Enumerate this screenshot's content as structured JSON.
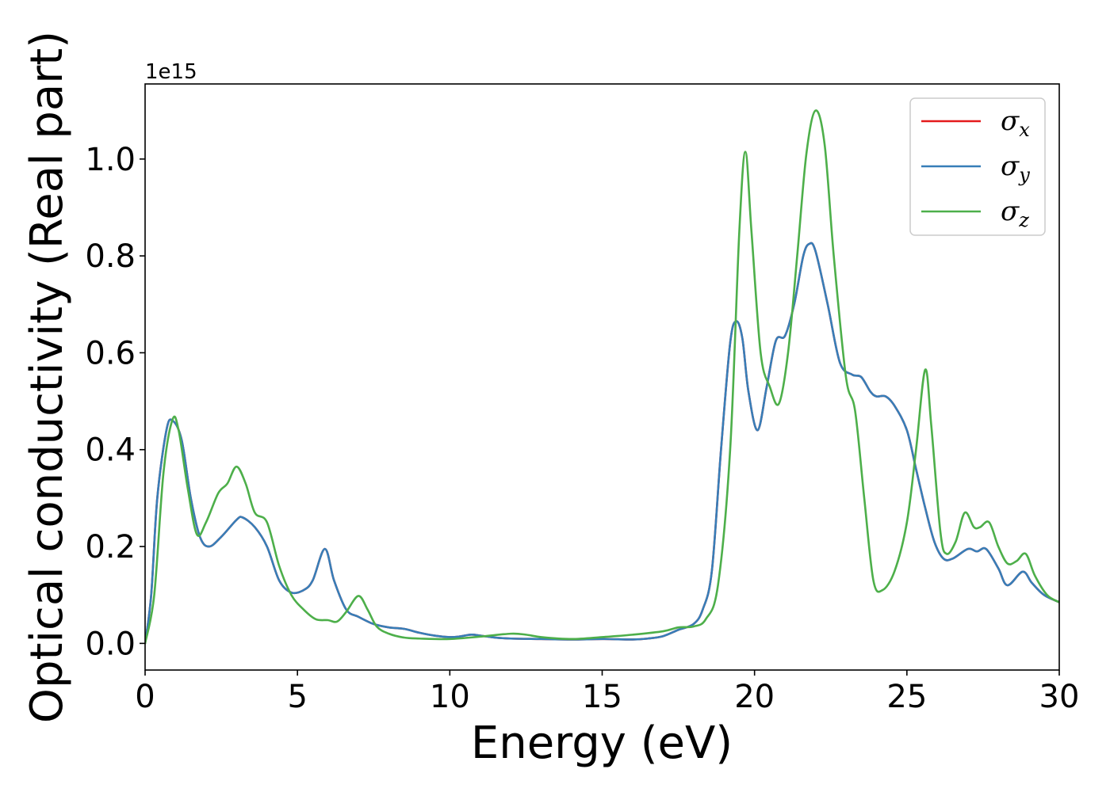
{
  "chart_data": {
    "type": "line",
    "title": "",
    "xlabel": "Energy (eV)",
    "ylabel": "Optical conductivity (Real part)",
    "y_offset_label": "1e15",
    "xlim": [
      0,
      30
    ],
    "ylim": [
      -0.055,
      1.155
    ],
    "x_ticks": [
      0,
      5,
      10,
      15,
      20,
      25,
      30
    ],
    "x_tick_labels": [
      "0",
      "5",
      "10",
      "15",
      "20",
      "25",
      "30"
    ],
    "y_ticks": [
      0.0,
      0.2,
      0.4,
      0.6,
      0.8,
      1.0
    ],
    "y_tick_labels": [
      "0.0",
      "0.2",
      "0.4",
      "0.6",
      "0.8",
      "1.0"
    ],
    "grid": false,
    "legend_position": "top-right",
    "series": [
      {
        "name": "σx",
        "legend_base": "σ",
        "legend_sub": "x",
        "color": "#e41a1c",
        "points": [
          [
            0,
            0
          ],
          [
            0.2,
            0.1
          ],
          [
            0.4,
            0.3
          ],
          [
            0.7,
            0.44
          ],
          [
            0.9,
            0.46
          ],
          [
            1.2,
            0.42
          ],
          [
            1.5,
            0.3
          ],
          [
            1.8,
            0.22
          ],
          [
            2.1,
            0.2
          ],
          [
            2.5,
            0.22
          ],
          [
            3.0,
            0.255
          ],
          [
            3.2,
            0.26
          ],
          [
            3.6,
            0.24
          ],
          [
            4.0,
            0.2
          ],
          [
            4.4,
            0.13
          ],
          [
            4.8,
            0.105
          ],
          [
            5.2,
            0.11
          ],
          [
            5.5,
            0.13
          ],
          [
            5.9,
            0.195
          ],
          [
            6.2,
            0.13
          ],
          [
            6.6,
            0.07
          ],
          [
            7.0,
            0.055
          ],
          [
            7.5,
            0.04
          ],
          [
            8.0,
            0.033
          ],
          [
            8.5,
            0.03
          ],
          [
            9.0,
            0.022
          ],
          [
            9.5,
            0.016
          ],
          [
            10.0,
            0.013
          ],
          [
            10.3,
            0.014
          ],
          [
            10.7,
            0.018
          ],
          [
            11.0,
            0.016
          ],
          [
            11.5,
            0.012
          ],
          [
            12.0,
            0.01
          ],
          [
            13.0,
            0.009
          ],
          [
            14.0,
            0.008
          ],
          [
            15.0,
            0.009
          ],
          [
            16.0,
            0.008
          ],
          [
            16.5,
            0.01
          ],
          [
            17.0,
            0.015
          ],
          [
            17.5,
            0.028
          ],
          [
            18.0,
            0.04
          ],
          [
            18.3,
            0.07
          ],
          [
            18.6,
            0.15
          ],
          [
            18.9,
            0.4
          ],
          [
            19.2,
            0.62
          ],
          [
            19.4,
            0.665
          ],
          [
            19.6,
            0.63
          ],
          [
            19.8,
            0.52
          ],
          [
            20.1,
            0.44
          ],
          [
            20.4,
            0.53
          ],
          [
            20.7,
            0.625
          ],
          [
            21.0,
            0.635
          ],
          [
            21.3,
            0.7
          ],
          [
            21.6,
            0.8
          ],
          [
            21.8,
            0.825
          ],
          [
            22.0,
            0.81
          ],
          [
            22.4,
            0.7
          ],
          [
            22.8,
            0.58
          ],
          [
            23.2,
            0.555
          ],
          [
            23.5,
            0.55
          ],
          [
            23.8,
            0.52
          ],
          [
            24.0,
            0.51
          ],
          [
            24.3,
            0.51
          ],
          [
            24.6,
            0.49
          ],
          [
            25.0,
            0.44
          ],
          [
            25.3,
            0.36
          ],
          [
            25.6,
            0.28
          ],
          [
            25.9,
            0.21
          ],
          [
            26.2,
            0.175
          ],
          [
            26.5,
            0.175
          ],
          [
            27.0,
            0.195
          ],
          [
            27.3,
            0.19
          ],
          [
            27.6,
            0.195
          ],
          [
            28.0,
            0.155
          ],
          [
            28.3,
            0.12
          ],
          [
            28.8,
            0.148
          ],
          [
            29.1,
            0.125
          ],
          [
            29.5,
            0.1
          ],
          [
            30.0,
            0.085
          ]
        ]
      },
      {
        "name": "σy",
        "legend_base": "σ",
        "legend_sub": "y",
        "color": "#377eb8",
        "points": [
          [
            0,
            0
          ],
          [
            0.2,
            0.1
          ],
          [
            0.4,
            0.3
          ],
          [
            0.7,
            0.44
          ],
          [
            0.9,
            0.46
          ],
          [
            1.2,
            0.42
          ],
          [
            1.5,
            0.3
          ],
          [
            1.8,
            0.22
          ],
          [
            2.1,
            0.2
          ],
          [
            2.5,
            0.22
          ],
          [
            3.0,
            0.255
          ],
          [
            3.2,
            0.26
          ],
          [
            3.6,
            0.24
          ],
          [
            4.0,
            0.2
          ],
          [
            4.4,
            0.13
          ],
          [
            4.8,
            0.105
          ],
          [
            5.2,
            0.11
          ],
          [
            5.5,
            0.13
          ],
          [
            5.9,
            0.195
          ],
          [
            6.2,
            0.13
          ],
          [
            6.6,
            0.07
          ],
          [
            7.0,
            0.055
          ],
          [
            7.5,
            0.04
          ],
          [
            8.0,
            0.033
          ],
          [
            8.5,
            0.03
          ],
          [
            9.0,
            0.022
          ],
          [
            9.5,
            0.016
          ],
          [
            10.0,
            0.013
          ],
          [
            10.3,
            0.014
          ],
          [
            10.7,
            0.018
          ],
          [
            11.0,
            0.016
          ],
          [
            11.5,
            0.012
          ],
          [
            12.0,
            0.01
          ],
          [
            13.0,
            0.009
          ],
          [
            14.0,
            0.008
          ],
          [
            15.0,
            0.009
          ],
          [
            16.0,
            0.008
          ],
          [
            16.5,
            0.01
          ],
          [
            17.0,
            0.015
          ],
          [
            17.5,
            0.028
          ],
          [
            18.0,
            0.04
          ],
          [
            18.3,
            0.07
          ],
          [
            18.6,
            0.15
          ],
          [
            18.9,
            0.4
          ],
          [
            19.2,
            0.62
          ],
          [
            19.4,
            0.665
          ],
          [
            19.6,
            0.63
          ],
          [
            19.8,
            0.52
          ],
          [
            20.1,
            0.44
          ],
          [
            20.4,
            0.53
          ],
          [
            20.7,
            0.625
          ],
          [
            21.0,
            0.635
          ],
          [
            21.3,
            0.7
          ],
          [
            21.6,
            0.8
          ],
          [
            21.8,
            0.825
          ],
          [
            22.0,
            0.81
          ],
          [
            22.4,
            0.7
          ],
          [
            22.8,
            0.58
          ],
          [
            23.2,
            0.555
          ],
          [
            23.5,
            0.55
          ],
          [
            23.8,
            0.52
          ],
          [
            24.0,
            0.51
          ],
          [
            24.3,
            0.51
          ],
          [
            24.6,
            0.49
          ],
          [
            25.0,
            0.44
          ],
          [
            25.3,
            0.36
          ],
          [
            25.6,
            0.28
          ],
          [
            25.9,
            0.21
          ],
          [
            26.2,
            0.175
          ],
          [
            26.5,
            0.175
          ],
          [
            27.0,
            0.195
          ],
          [
            27.3,
            0.19
          ],
          [
            27.6,
            0.195
          ],
          [
            28.0,
            0.155
          ],
          [
            28.3,
            0.12
          ],
          [
            28.8,
            0.148
          ],
          [
            29.1,
            0.125
          ],
          [
            29.5,
            0.1
          ],
          [
            30.0,
            0.085
          ]
        ]
      },
      {
        "name": "σz",
        "legend_base": "σ",
        "legend_sub": "z",
        "color": "#4daf4a",
        "points": [
          [
            0,
            0
          ],
          [
            0.3,
            0.1
          ],
          [
            0.6,
            0.35
          ],
          [
            0.9,
            0.462
          ],
          [
            1.1,
            0.44
          ],
          [
            1.4,
            0.32
          ],
          [
            1.7,
            0.225
          ],
          [
            2.0,
            0.25
          ],
          [
            2.4,
            0.31
          ],
          [
            2.7,
            0.33
          ],
          [
            3.0,
            0.365
          ],
          [
            3.3,
            0.33
          ],
          [
            3.6,
            0.27
          ],
          [
            4.0,
            0.25
          ],
          [
            4.4,
            0.16
          ],
          [
            4.8,
            0.1
          ],
          [
            5.2,
            0.07
          ],
          [
            5.6,
            0.05
          ],
          [
            6.0,
            0.048
          ],
          [
            6.3,
            0.045
          ],
          [
            6.6,
            0.065
          ],
          [
            7.0,
            0.098
          ],
          [
            7.3,
            0.07
          ],
          [
            7.6,
            0.035
          ],
          [
            8.0,
            0.02
          ],
          [
            8.5,
            0.012
          ],
          [
            9.0,
            0.01
          ],
          [
            10.0,
            0.009
          ],
          [
            11.0,
            0.014
          ],
          [
            12.0,
            0.02
          ],
          [
            12.5,
            0.018
          ],
          [
            13.0,
            0.013
          ],
          [
            14.0,
            0.009
          ],
          [
            15.0,
            0.013
          ],
          [
            16.0,
            0.018
          ],
          [
            17.0,
            0.025
          ],
          [
            17.5,
            0.033
          ],
          [
            18.0,
            0.035
          ],
          [
            18.4,
            0.05
          ],
          [
            18.8,
            0.12
          ],
          [
            19.2,
            0.4
          ],
          [
            19.5,
            0.85
          ],
          [
            19.7,
            1.015
          ],
          [
            19.9,
            0.85
          ],
          [
            20.2,
            0.6
          ],
          [
            20.5,
            0.53
          ],
          [
            20.8,
            0.495
          ],
          [
            21.1,
            0.6
          ],
          [
            21.4,
            0.8
          ],
          [
            21.7,
            1.01
          ],
          [
            22.0,
            1.1
          ],
          [
            22.3,
            1.03
          ],
          [
            22.6,
            0.8
          ],
          [
            23.0,
            0.55
          ],
          [
            23.3,
            0.48
          ],
          [
            23.6,
            0.3
          ],
          [
            23.9,
            0.13
          ],
          [
            24.2,
            0.11
          ],
          [
            24.6,
            0.15
          ],
          [
            25.0,
            0.25
          ],
          [
            25.3,
            0.4
          ],
          [
            25.6,
            0.565
          ],
          [
            25.8,
            0.45
          ],
          [
            26.1,
            0.23
          ],
          [
            26.3,
            0.185
          ],
          [
            26.6,
            0.21
          ],
          [
            26.9,
            0.27
          ],
          [
            27.2,
            0.24
          ],
          [
            27.4,
            0.24
          ],
          [
            27.7,
            0.25
          ],
          [
            28.0,
            0.2
          ],
          [
            28.3,
            0.165
          ],
          [
            28.6,
            0.17
          ],
          [
            28.9,
            0.185
          ],
          [
            29.2,
            0.14
          ],
          [
            29.6,
            0.1
          ],
          [
            30.0,
            0.085
          ]
        ]
      }
    ]
  }
}
